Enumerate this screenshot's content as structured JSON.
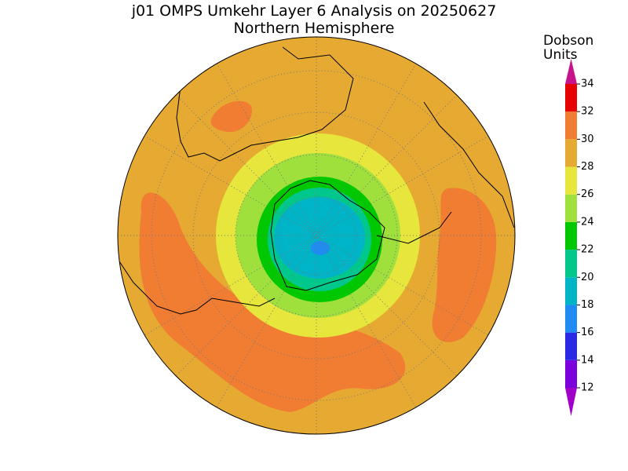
{
  "title": "j01 OMPS Umkehr Layer 6 Analysis on 20250627",
  "subtitle": "Northern Hemisphere",
  "colorbar": {
    "label_lines": [
      "Dobson",
      "Units"
    ],
    "ticks": [
      12,
      14,
      16,
      18,
      20,
      22,
      24,
      26,
      28,
      30,
      32,
      34
    ],
    "colors": [
      "#7c00dc",
      "#2a2ae6",
      "#1e8cf0",
      "#00b4c8",
      "#00c88c",
      "#00c800",
      "#a0e03c",
      "#e6e63c",
      "#e6aa32",
      "#f07d32",
      "#e60000"
    ],
    "under_color": "#a000c8",
    "over_color": "#c8148c"
  }
}
